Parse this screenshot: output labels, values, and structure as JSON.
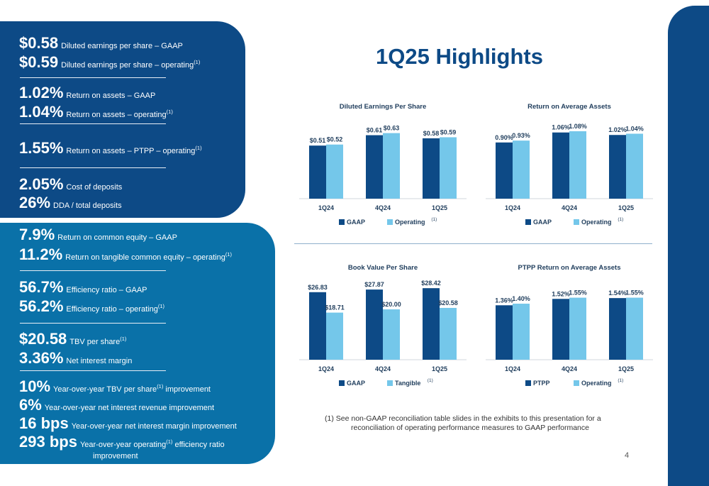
{
  "title": "1Q25 Highlights",
  "page_number": "4",
  "colors": {
    "dark_blue": "#0d4a86",
    "light_blue": "#74c7ea",
    "panel_bottom": "#0a71a8"
  },
  "top_panel": [
    {
      "value": "$0.58",
      "label": "Diluted earnings per share – GAAP",
      "sup": ""
    },
    {
      "value": "$0.59",
      "label": "Diluted earnings per share – operating",
      "sup": "(1)"
    },
    {
      "value": "1.02%",
      "label": "Return on assets – GAAP",
      "sup": ""
    },
    {
      "value": "1.04%",
      "label": "Return on assets – operating",
      "sup": "(1)"
    },
    {
      "value": "1.55%",
      "label": "Return on assets – PTPP – operating",
      "sup": "(1)"
    },
    {
      "value": "2.05%",
      "label": "Cost of deposits",
      "sup": ""
    },
    {
      "value": "26%",
      "label": "DDA / total deposits",
      "sup": ""
    }
  ],
  "bottom_panel": [
    {
      "value": "7.9%",
      "label": "Return on common equity – GAAP",
      "sup": ""
    },
    {
      "value": "11.2%",
      "label": "Return on tangible common equity – operating",
      "sup": "(1)"
    },
    {
      "value": "56.7%",
      "label": "Efficiency ratio – GAAP",
      "sup": ""
    },
    {
      "value": "56.2%",
      "label": "Efficiency ratio – operating",
      "sup": "(1)"
    },
    {
      "value": "$20.58",
      "label": "TBV per share",
      "sup": "(1)"
    },
    {
      "value": "3.36%",
      "label": "Net interest margin",
      "sup": ""
    },
    {
      "value": "10%",
      "label": "Year-over-year TBV per share",
      "sup": "(1)",
      "label_after": " improvement"
    },
    {
      "value": "6%",
      "label": "Year-over-year net interest revenue improvement",
      "sup": ""
    },
    {
      "value": "16 bps",
      "label": "Year-over-year net interest margin improvement",
      "sup": ""
    },
    {
      "value": "293 bps",
      "label": "Year-over-year operating",
      "sup": "(1)",
      "label_after": " efficiency ratio",
      "label_cont": "improvement"
    }
  ],
  "footnote": {
    "line1": "(1)  See non-GAAP reconciliation table slides in the exhibits to this presentation for a",
    "line2": "reconciliation of operating performance measures to GAAP performance"
  },
  "chart_data": [
    {
      "type": "bar",
      "title": "Diluted Earnings Per Share",
      "categories": [
        "1Q24",
        "4Q24",
        "1Q25"
      ],
      "series": [
        {
          "name": "GAAP",
          "sup": "",
          "values": [
            0.51,
            0.61,
            0.58
          ],
          "labels": [
            "$0.51",
            "$0.61",
            "$0.58"
          ]
        },
        {
          "name": "Operating",
          "sup": "(1)",
          "values": [
            0.52,
            0.63,
            0.59
          ],
          "labels": [
            "$0.52",
            "$0.63",
            "$0.59"
          ]
        }
      ],
      "ylim": [
        0,
        0.75
      ],
      "legend": "bottom"
    },
    {
      "type": "bar",
      "title": "Return on Average Assets",
      "categories": [
        "1Q24",
        "4Q24",
        "1Q25"
      ],
      "series": [
        {
          "name": "GAAP",
          "sup": "",
          "values": [
            0.9,
            1.06,
            1.02
          ],
          "labels": [
            "0.90%",
            "1.06%",
            "1.02%"
          ]
        },
        {
          "name": "Operating",
          "sup": "(1)",
          "values": [
            0.93,
            1.08,
            1.04
          ],
          "labels": [
            "0.93%",
            "1.08%",
            "1.04%"
          ]
        }
      ],
      "ylim": [
        0,
        1.25
      ],
      "legend": "bottom"
    },
    {
      "type": "bar",
      "title": "Book Value Per Share",
      "categories": [
        "1Q24",
        "4Q24",
        "1Q25"
      ],
      "series": [
        {
          "name": "GAAP",
          "sup": "",
          "values": [
            26.83,
            27.87,
            28.42
          ],
          "labels": [
            "$26.83",
            "$27.87",
            "$28.42"
          ]
        },
        {
          "name": "Tangible",
          "sup": "(1)",
          "values": [
            18.71,
            20.0,
            20.58
          ],
          "labels": [
            "$18.71",
            "$20.00",
            "$20.58"
          ]
        }
      ],
      "ylim": [
        0,
        31
      ],
      "legend": "bottom"
    },
    {
      "type": "bar",
      "title": "PTPP Return on Average Assets",
      "categories": [
        "1Q24",
        "4Q24",
        "1Q25"
      ],
      "series": [
        {
          "name": "PTPP",
          "sup": "",
          "values": [
            1.36,
            1.52,
            1.54
          ],
          "labels": [
            "1.36%",
            "1.52%",
            "1.54%"
          ]
        },
        {
          "name": "Operating",
          "sup": "(1)",
          "values": [
            1.4,
            1.55,
            1.55
          ],
          "labels": [
            "1.40%",
            "1.55%",
            "1.55%"
          ]
        }
      ],
      "ylim": [
        0,
        1.95
      ],
      "legend": "bottom"
    }
  ]
}
